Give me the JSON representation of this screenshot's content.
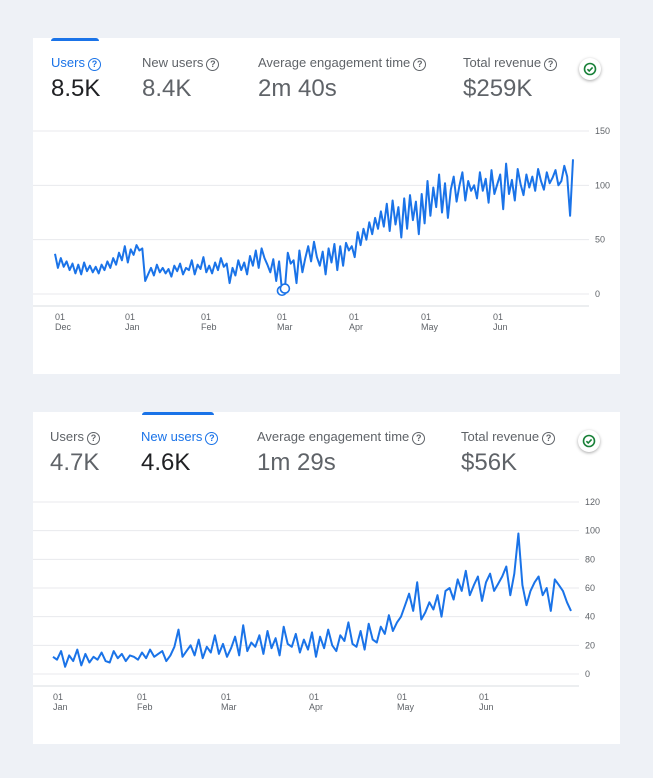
{
  "cards": [
    {
      "metrics": [
        {
          "label": "Users",
          "value": "8.5K"
        },
        {
          "label": "New users",
          "value": "8.4K"
        },
        {
          "label": "Average engagement time",
          "value": "2m 40s"
        },
        {
          "label": "Total revenue",
          "value": "$259K"
        }
      ],
      "active_metric": 0
    },
    {
      "metrics": [
        {
          "label": "Users",
          "value": "4.7K"
        },
        {
          "label": "New users",
          "value": "4.6K"
        },
        {
          "label": "Average engagement time",
          "value": "1m 29s"
        },
        {
          "label": "Total revenue",
          "value": "$56K"
        }
      ],
      "active_metric": 1
    }
  ],
  "chart_data": [
    {
      "type": "line",
      "series": [
        {
          "color": "#1a73e8",
          "values": [
            37,
            24,
            33,
            25,
            30,
            22,
            28,
            19,
            27,
            18,
            29,
            21,
            26,
            20,
            25,
            19,
            27,
            22,
            30,
            24,
            33,
            27,
            38,
            31,
            44,
            29,
            41,
            36,
            45,
            40,
            42,
            12,
            18,
            24,
            17,
            27,
            20,
            24,
            19,
            23,
            16,
            26,
            21,
            28,
            18,
            24,
            22,
            31,
            18,
            27,
            23,
            34,
            20,
            26,
            19,
            29,
            22,
            33,
            25,
            28,
            10,
            24,
            17,
            31,
            22,
            29,
            18,
            35,
            26,
            40,
            24,
            42,
            33,
            27,
            20,
            32,
            12,
            30,
            3,
            5,
            38,
            28,
            31,
            10,
            40,
            20,
            33,
            44,
            30,
            48,
            34,
            26,
            39,
            18,
            42,
            29,
            46,
            22,
            44,
            26,
            47,
            40,
            44,
            34,
            57,
            45,
            60,
            50,
            66,
            55,
            70,
            60,
            76,
            62,
            83,
            58,
            86,
            64,
            80,
            52,
            88,
            60,
            91,
            68,
            85,
            55,
            92,
            65,
            104,
            72,
            98,
            80,
            110,
            75,
            102,
            70,
            96,
            108,
            85,
            100,
            112,
            86,
            104,
            95,
            100,
            88,
            112,
            95,
            106,
            84,
            114,
            92,
            101,
            110,
            78,
            120,
            92,
            105,
            86,
            115,
            101,
            91,
            110,
            98,
            108,
            95,
            115,
            104,
            96,
            112,
            102,
            107,
            114,
            100,
            104,
            118,
            108,
            72,
            124
          ]
        }
      ],
      "x_ticks": [
        {
          "day": [
            "01"
          ],
          "month": "Dec"
        },
        {
          "day": [
            "01"
          ],
          "month": "Jan"
        },
        {
          "day": [
            "01"
          ],
          "month": "Feb"
        },
        {
          "day": [
            "01"
          ],
          "month": "Mar"
        },
        {
          "day": [
            "01"
          ],
          "month": "Apr"
        },
        {
          "day": [
            "01"
          ],
          "month": "May"
        },
        {
          "day": [
            "01"
          ],
          "month": "Jun"
        }
      ],
      "y_ticks": [
        "150",
        "100",
        "50",
        "0"
      ],
      "ylim": [
        0,
        150
      ]
    },
    {
      "type": "line",
      "series": [
        {
          "color": "#1a73e8",
          "values": [
            12,
            10,
            16,
            5,
            13,
            9,
            17,
            6,
            14,
            8,
            12,
            10,
            15,
            9,
            8,
            16,
            11,
            14,
            9,
            13,
            12,
            10,
            15,
            11,
            17,
            12,
            14,
            16,
            9,
            13,
            19,
            31,
            12,
            16,
            20,
            13,
            24,
            11,
            19,
            15,
            27,
            14,
            21,
            12,
            18,
            26,
            13,
            34,
            16,
            22,
            19,
            27,
            14,
            30,
            18,
            25,
            13,
            33,
            21,
            19,
            28,
            15,
            24,
            17,
            29,
            12,
            26,
            18,
            31,
            20,
            16,
            27,
            23,
            36,
            21,
            19,
            30,
            17,
            35,
            24,
            22,
            33,
            28,
            41,
            30,
            36,
            40,
            48,
            56,
            44,
            64,
            38,
            43,
            50,
            45,
            55,
            40,
            58,
            60,
            52,
            66,
            58,
            72,
            55,
            62,
            68,
            51,
            64,
            70,
            58,
            63,
            68,
            75,
            55,
            70,
            98,
            62,
            48,
            58,
            64,
            68,
            55,
            60,
            44,
            66,
            62,
            58,
            50,
            44
          ]
        }
      ],
      "x_ticks": [
        {
          "day": [
            "01"
          ],
          "month": "Jan"
        },
        {
          "day": [
            "01"
          ],
          "month": "Feb"
        },
        {
          "day": [
            "01"
          ],
          "month": "Mar"
        },
        {
          "day": [
            "01"
          ],
          "month": "Apr"
        },
        {
          "day": [
            "01"
          ],
          "month": "May"
        },
        {
          "day": [
            "01"
          ],
          "month": "Jun"
        }
      ],
      "y_ticks": [
        "120",
        "100",
        "80",
        "60",
        "40",
        "20",
        "0"
      ],
      "ylim": [
        0,
        120
      ]
    }
  ]
}
